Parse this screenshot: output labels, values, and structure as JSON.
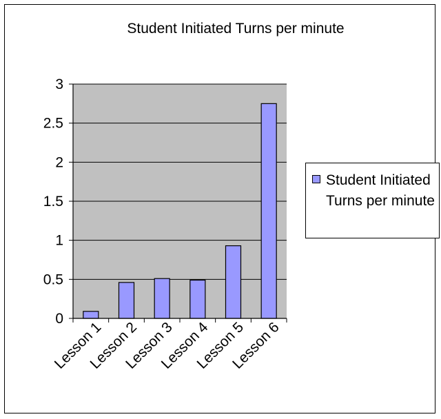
{
  "chart_data": {
    "type": "bar",
    "title": "Student Initiated Turns per minute",
    "categories": [
      "Lesson 1",
      "Lesson 2",
      "Lesson 3",
      "Lesson 4",
      "Lesson 5",
      "Lesson 6"
    ],
    "series": [
      {
        "name": "Student Initiated Turns per minute",
        "values": [
          0.09,
          0.46,
          0.51,
          0.49,
          0.93,
          2.75
        ]
      }
    ],
    "ylim": [
      0,
      3
    ],
    "yticks": [
      "0",
      "0.5",
      "1",
      "1.5",
      "2",
      "2.5",
      "3"
    ],
    "xlabel": "",
    "ylabel": "",
    "grid": true,
    "legend_position": "right",
    "colors": {
      "bar": "#9999ff",
      "plot_background": "#c0c0c0",
      "bar_border": "#000000"
    }
  }
}
